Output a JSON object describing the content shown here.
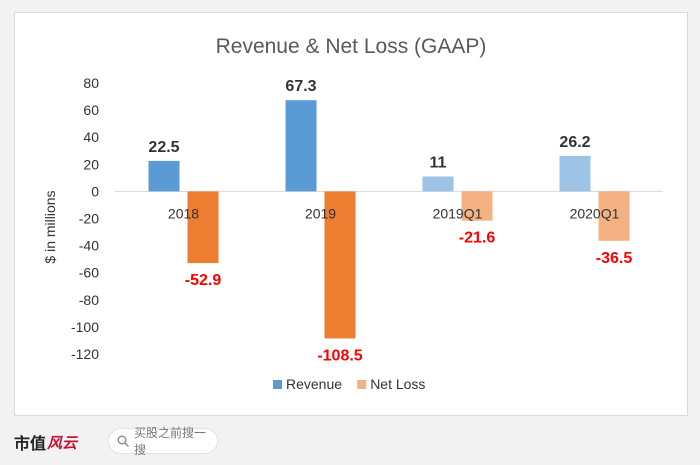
{
  "chart_data": {
    "type": "bar",
    "title": "Revenue & Net Loss (GAAP)",
    "ylabel": "$ in millions",
    "xlabel": "",
    "ylim": [
      -120,
      80
    ],
    "yticks": [
      80,
      60,
      40,
      20,
      0,
      -20,
      -40,
      -60,
      -80,
      -100,
      -120
    ],
    "grid": false,
    "legend_position": "bottom",
    "categories": [
      "2018",
      "2019",
      "2019Q1",
      "2020Q1"
    ],
    "series": [
      {
        "name": "Revenue",
        "values": [
          22.5,
          67.3,
          11,
          26.2
        ],
        "labels": [
          "22.5",
          "67.3",
          "11",
          "26.2"
        ],
        "colors": [
          "#5b9bd5",
          "#5b9bd5",
          "#9dc3e6",
          "#9dc3e6"
        ],
        "label_color": "#333333"
      },
      {
        "name": "Net Loss",
        "values": [
          -52.9,
          -108.5,
          -21.6,
          -36.5
        ],
        "labels": [
          "-52.9",
          "-108.5",
          "-21.6",
          "-36.5"
        ],
        "colors": [
          "#ed7d31",
          "#ed7d31",
          "#f4b183",
          "#f4b183"
        ],
        "label_color": "#ff0000"
      }
    ],
    "legend_colors": [
      "#5b9bd5",
      "#f4b183"
    ]
  },
  "footer": {
    "brand_main": "市值",
    "brand_accent": "风云",
    "search_placeholder": "买股之前搜一搜"
  }
}
